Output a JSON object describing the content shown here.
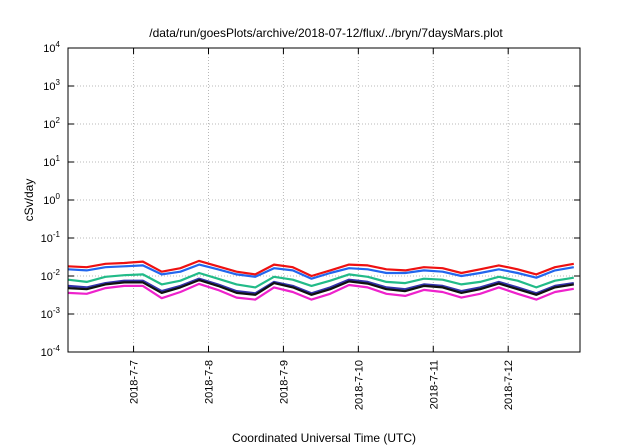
{
  "chart_data": {
    "type": "line",
    "title": "/data/run/goesPlots/archive/2018-07-12/flux/../bryn/7daysMars.plot",
    "xlabel": "Coordinated Universal Time (UTC)",
    "ylabel": "cSv/day",
    "yscale": "log",
    "ylim": [
      0.0001,
      10000
    ],
    "xlim": [
      "2018-07-06 03:00",
      "2018-07-12 23:00"
    ],
    "grid": true,
    "legend": "none",
    "y_ticks": [
      {
        "value": 0.0001,
        "base": "10",
        "exp": "-4"
      },
      {
        "value": 0.001,
        "base": "10",
        "exp": "-3"
      },
      {
        "value": 0.01,
        "base": "10",
        "exp": "-2"
      },
      {
        "value": 0.1,
        "base": "10",
        "exp": "-1"
      },
      {
        "value": 1,
        "base": "10",
        "exp": "0"
      },
      {
        "value": 10,
        "base": "10",
        "exp": "1"
      },
      {
        "value": 100,
        "base": "10",
        "exp": "2"
      },
      {
        "value": 1000,
        "base": "10",
        "exp": "3"
      },
      {
        "value": 10000,
        "base": "10",
        "exp": "4"
      }
    ],
    "x_ticks": [
      {
        "value": "2018-07-07 00:00",
        "label": "2018-7-7"
      },
      {
        "value": "2018-07-08 00:00",
        "label": "2018-7-8"
      },
      {
        "value": "2018-07-09 00:00",
        "label": "2018-7-9"
      },
      {
        "value": "2018-07-10 00:00",
        "label": "2018-7-10"
      },
      {
        "value": "2018-07-11 00:00",
        "label": "2018-7-11"
      },
      {
        "value": "2018-07-12 00:00",
        "label": "2018-7-12"
      }
    ],
    "x": [
      "2018-07-06 03:00",
      "2018-07-06 09:00",
      "2018-07-06 15:00",
      "2018-07-06 21:00",
      "2018-07-07 03:00",
      "2018-07-07 09:00",
      "2018-07-07 15:00",
      "2018-07-07 21:00",
      "2018-07-08 03:00",
      "2018-07-08 09:00",
      "2018-07-08 15:00",
      "2018-07-08 21:00",
      "2018-07-09 03:00",
      "2018-07-09 09:00",
      "2018-07-09 15:00",
      "2018-07-09 21:00",
      "2018-07-10 03:00",
      "2018-07-10 09:00",
      "2018-07-10 15:00",
      "2018-07-10 21:00",
      "2018-07-11 03:00",
      "2018-07-11 09:00",
      "2018-07-11 15:00",
      "2018-07-11 21:00",
      "2018-07-12 03:00",
      "2018-07-12 09:00",
      "2018-07-12 15:00",
      "2018-07-12 21:00"
    ],
    "series": [
      {
        "color": "#ee1111",
        "values": [
          0.018,
          0.017,
          0.021,
          0.022,
          0.024,
          0.013,
          0.016,
          0.025,
          0.018,
          0.013,
          0.011,
          0.02,
          0.017,
          0.01,
          0.014,
          0.02,
          0.019,
          0.015,
          0.014,
          0.017,
          0.016,
          0.012,
          0.015,
          0.019,
          0.015,
          0.011,
          0.017,
          0.021
        ]
      },
      {
        "color": "#2266ee",
        "values": [
          0.015,
          0.014,
          0.017,
          0.018,
          0.019,
          0.011,
          0.013,
          0.02,
          0.015,
          0.011,
          0.0095,
          0.016,
          0.014,
          0.0085,
          0.012,
          0.016,
          0.015,
          0.012,
          0.012,
          0.014,
          0.013,
          0.01,
          0.012,
          0.015,
          0.012,
          0.009,
          0.014,
          0.017
        ]
      },
      {
        "color": "#22bb88",
        "values": [
          0.008,
          0.007,
          0.0095,
          0.0105,
          0.011,
          0.006,
          0.0075,
          0.012,
          0.0085,
          0.006,
          0.005,
          0.0095,
          0.008,
          0.0055,
          0.0075,
          0.011,
          0.0095,
          0.007,
          0.0065,
          0.0085,
          0.008,
          0.006,
          0.007,
          0.0095,
          0.0075,
          0.005,
          0.0075,
          0.009
        ]
      },
      {
        "color": "#3333aa",
        "values": [
          0.0055,
          0.005,
          0.0065,
          0.0075,
          0.0075,
          0.004,
          0.0055,
          0.0085,
          0.006,
          0.004,
          0.0035,
          0.007,
          0.0055,
          0.0035,
          0.005,
          0.008,
          0.007,
          0.005,
          0.0045,
          0.006,
          0.0055,
          0.004,
          0.005,
          0.007,
          0.005,
          0.0035,
          0.0055,
          0.0065
        ]
      },
      {
        "color": "#111111",
        "values": [
          0.0048,
          0.0045,
          0.006,
          0.0068,
          0.0068,
          0.0036,
          0.005,
          0.0078,
          0.0055,
          0.0036,
          0.0032,
          0.0065,
          0.005,
          0.0032,
          0.0045,
          0.0072,
          0.0063,
          0.0045,
          0.004,
          0.0055,
          0.005,
          0.0036,
          0.0045,
          0.0063,
          0.0045,
          0.0032,
          0.005,
          0.006
        ]
      },
      {
        "color": "#ee22cc",
        "values": [
          0.0036,
          0.0034,
          0.0048,
          0.0055,
          0.0055,
          0.0026,
          0.0038,
          0.0062,
          0.0043,
          0.0027,
          0.0024,
          0.005,
          0.0038,
          0.0024,
          0.0034,
          0.0058,
          0.005,
          0.0034,
          0.003,
          0.0043,
          0.0038,
          0.0027,
          0.0034,
          0.005,
          0.0034,
          0.0024,
          0.0038,
          0.0046
        ]
      }
    ]
  }
}
